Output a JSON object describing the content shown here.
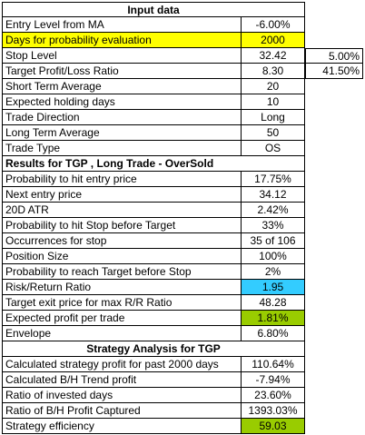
{
  "sheet": {
    "rows": [
      {
        "kind": "header",
        "text": "Input data"
      },
      {
        "kind": "row",
        "label": "Entry Level from MA",
        "value": "-6.00%"
      },
      {
        "kind": "row",
        "label": "Days for probability evaluation",
        "value": "2000",
        "label_fill": "#ffff00",
        "value_fill": "#ffff00"
      },
      {
        "kind": "row",
        "label": "Stop Level",
        "value": "32.42",
        "extra": "5.00%"
      },
      {
        "kind": "row",
        "label": "Target Profit/Loss Ratio",
        "value": "8.30",
        "extra": "41.50%"
      },
      {
        "kind": "row",
        "label": "Short Term Average",
        "value": "20"
      },
      {
        "kind": "row",
        "label": "Expected holding days",
        "value": "10"
      },
      {
        "kind": "row",
        "label": "Trade Direction",
        "value": "Long"
      },
      {
        "kind": "row",
        "label": "Long Term Average",
        "value": "50"
      },
      {
        "kind": "row",
        "label": "Trade Type",
        "value": "OS"
      },
      {
        "kind": "section",
        "text": "Results for TGP , Long Trade - OverSold"
      },
      {
        "kind": "row",
        "label": "Probability to hit entry price",
        "value": "17.75%"
      },
      {
        "kind": "row",
        "label": "Next entry price",
        "value": "34.12"
      },
      {
        "kind": "row",
        "label": "20D ATR",
        "value": "2.42%"
      },
      {
        "kind": "row",
        "label": "Probability to hit Stop before Target",
        "value": "33%"
      },
      {
        "kind": "row",
        "label": "Occurrences for stop",
        "value": "35 of 106"
      },
      {
        "kind": "row",
        "label": "Position Size",
        "value": "100%"
      },
      {
        "kind": "row",
        "label": "Probability to reach Target before Stop",
        "value": "2%"
      },
      {
        "kind": "row",
        "label": "Risk/Return Ratio",
        "value": "1.95",
        "value_fill": "#33ccff"
      },
      {
        "kind": "row",
        "label": "Target exit price for max R/R Ratio",
        "value": "48.28"
      },
      {
        "kind": "row",
        "label": "Expected profit per trade",
        "value": "1.81%",
        "value_fill": "#99cc00"
      },
      {
        "kind": "row",
        "label": "Envelope",
        "value": "6.80%"
      },
      {
        "kind": "header",
        "text": "Strategy Analysis for TGP"
      },
      {
        "kind": "row",
        "label": "Calculated strategy profit for past 2000 days",
        "value": "110.64%"
      },
      {
        "kind": "row",
        "label": "Calculated B/H Trend profit",
        "value": "-7.94%"
      },
      {
        "kind": "row",
        "label": "Ratio of invested days",
        "value": "23.60%"
      },
      {
        "kind": "row",
        "label": "Ratio of B/H Profit Captured",
        "value": "1393.03%"
      },
      {
        "kind": "row",
        "label": "Strategy efficiency",
        "value": "59.03",
        "value_fill": "#99cc00"
      }
    ]
  }
}
